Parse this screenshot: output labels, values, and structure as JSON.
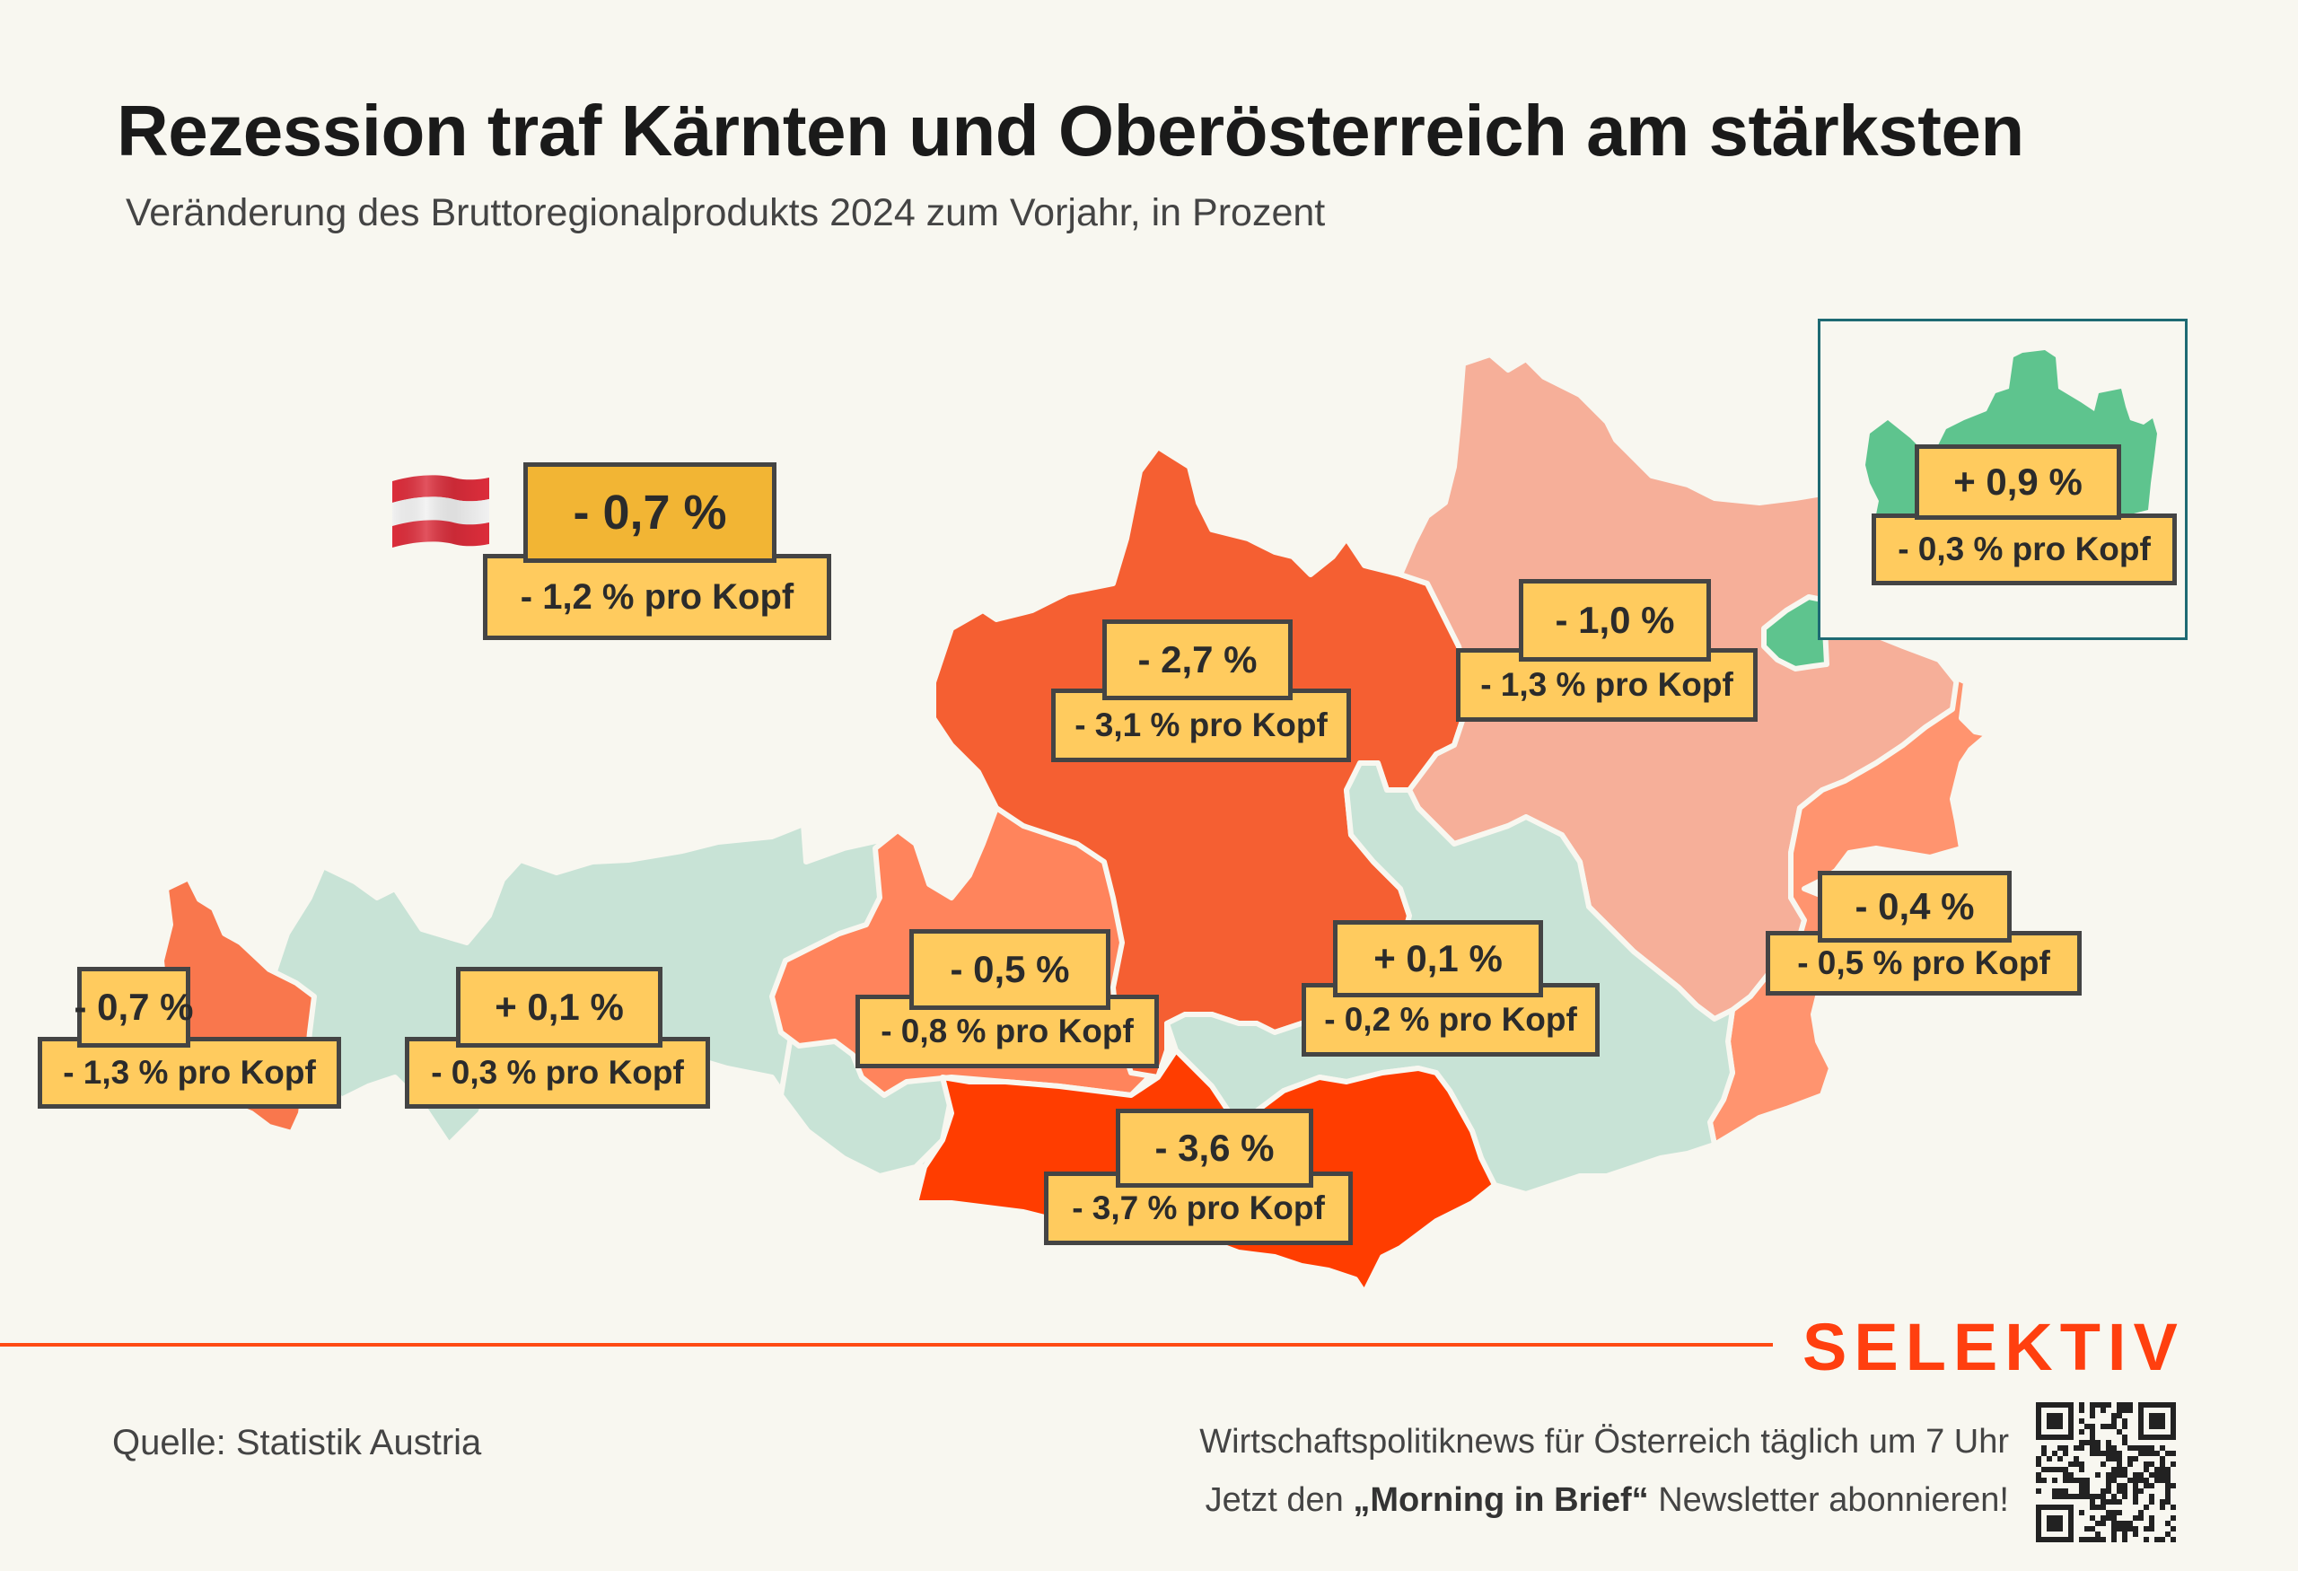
{
  "title": "Rezession traf Kärnten und Oberösterreich am stärksten",
  "subtitle": "Veränderung des Bruttoregionalprodukts 2024 zum Vorjahr, in Prozent",
  "national": {
    "flag_icon": "austria-flag-icon",
    "change": "- 0,7 %",
    "per_capita": "- 1,2 % pro Kopf"
  },
  "colors": {
    "background": "#f8f7f0",
    "label_box": "#ffcb5e",
    "national_box": "#f2b534",
    "brand": "#ff3f0f",
    "inset_border": "#1e6a73",
    "growth_green": "#5ec48e",
    "neutral_mint": "#c8e3d6",
    "mild_decline": "#f6af99",
    "moderate_decline": "#ff8a63",
    "strong_decline": "#f55f32",
    "severe_decline": "#ff3d00"
  },
  "chart_data": {
    "type": "choropleth-map",
    "title": "Rezession traf Kärnten und Oberösterreich am stärksten",
    "subtitle": "Veränderung des Bruttoregionalprodukts 2024 zum Vorjahr, in Prozent",
    "unit": "%",
    "regions": [
      {
        "id": "vorarlberg",
        "change": -0.7,
        "per_capita": -1.3,
        "label": "- 0,7 %",
        "sub_label": "- 1,3 % pro Kopf"
      },
      {
        "id": "tirol",
        "change": 0.1,
        "per_capita": -0.3,
        "label": "+ 0,1 %",
        "sub_label": "- 0,3 % pro Kopf"
      },
      {
        "id": "salzburg",
        "change": -0.5,
        "per_capita": -0.8,
        "label": "- 0,5 %",
        "sub_label": "- 0,8 % pro Kopf"
      },
      {
        "id": "oberoesterreich",
        "change": -2.7,
        "per_capita": -3.1,
        "label": "- 2,7 %",
        "sub_label": "- 3,1 % pro Kopf"
      },
      {
        "id": "niederoesterreich",
        "change": -1.0,
        "per_capita": -1.3,
        "label": "- 1,0 %",
        "sub_label": "- 1,3 % pro Kopf"
      },
      {
        "id": "wien",
        "change": 0.9,
        "per_capita": -0.3,
        "label": "+ 0,9 %",
        "sub_label": "- 0,3 % pro Kopf"
      },
      {
        "id": "burgenland",
        "change": -0.4,
        "per_capita": -0.5,
        "label": "- 0,4 %",
        "sub_label": "- 0,5 % pro Kopf"
      },
      {
        "id": "steiermark",
        "change": 0.1,
        "per_capita": -0.2,
        "label": "+ 0,1 %",
        "sub_label": "- 0,2 % pro Kopf"
      },
      {
        "id": "kaernten",
        "change": -3.6,
        "per_capita": -3.7,
        "label": "- 3,6 %",
        "sub_label": "- 3,7 % pro Kopf"
      }
    ],
    "national": {
      "change": -0.7,
      "per_capita": -1.2
    }
  },
  "footer": {
    "source": "Quelle: Statistik Austria",
    "brand": "SELEKTIV",
    "promo_line1": "Wirtschaftspolitiknews für Österreich täglich um 7 Uhr",
    "promo_line2_prefix": "Jetzt den ",
    "promo_line2_bold": "„Morning in Brief“",
    "promo_line2_suffix": " Newsletter abonnieren!",
    "qr_icon": "qr-code-icon"
  }
}
